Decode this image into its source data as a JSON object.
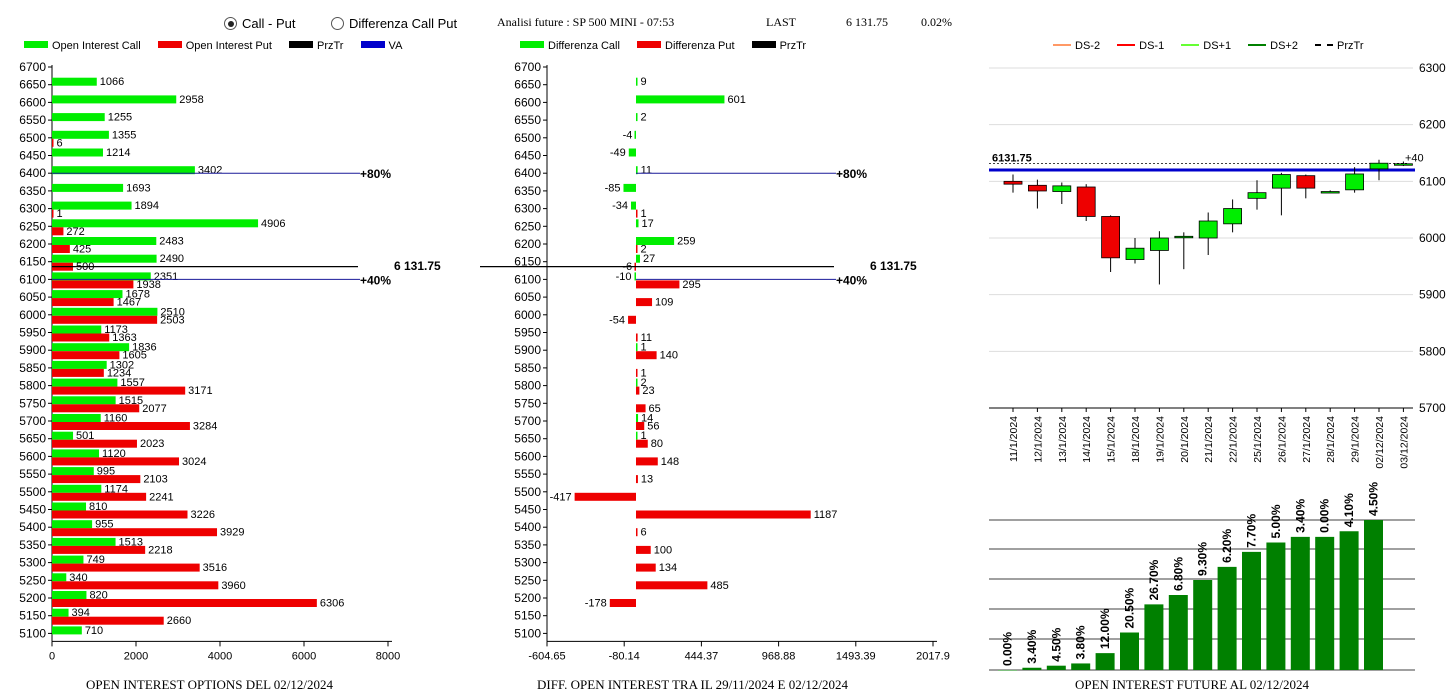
{
  "header": {
    "options": [
      {
        "label": "Call - Put",
        "selected": true
      },
      {
        "label": "Differenza Call Put",
        "selected": false
      }
    ],
    "title": "Analisi future : SP 500 MINI - 07:53",
    "last_label": "LAST",
    "last_value": "6 131.75",
    "last_change": "0.02%"
  },
  "colors": {
    "green": "#00ee00",
    "red": "#ee0000",
    "black": "#000000",
    "blue": "#0000cc",
    "dark_green": "#008000",
    "ds_minus2": "#ff9966",
    "ds_minus1": "#ff0000",
    "ds_plus1": "#66ff33",
    "ds_plus2": "#008000"
  },
  "left_chart": {
    "legend": [
      {
        "label": "Open Interest Call",
        "color": "#00ee00"
      },
      {
        "label": "Open Interest Put",
        "color": "#ee0000"
      },
      {
        "label": "PrzTr",
        "color": "#000000"
      },
      {
        "label": "VA",
        "color": "#0000cc"
      }
    ],
    "footer": "OPEN INTEREST OPTIONS DEL 02/12/2024"
  },
  "mid_chart": {
    "legend": [
      {
        "label": "Differenza Call",
        "color": "#00ee00"
      },
      {
        "label": "Differenza Put",
        "color": "#ee0000"
      },
      {
        "label": "PrzTr",
        "color": "#000000"
      }
    ],
    "footer": "DIFF. OPEN INTEREST TRA IL 29/11/2024 E 02/12/2024"
  },
  "right_chart": {
    "legend": [
      {
        "label": "DS-2",
        "color": "#ff9966",
        "dashed": false
      },
      {
        "label": "DS-1",
        "color": "#ff0000",
        "dashed": false
      },
      {
        "label": "DS+1",
        "color": "#66ff33",
        "dashed": false
      },
      {
        "label": "DS+2",
        "color": "#008000",
        "dashed": false
      },
      {
        "label": "PrzTr",
        "color": "#000000",
        "dashed": true
      }
    ],
    "footer": "OPEN INTEREST FUTURE AL 02/12/2024"
  },
  "chart_data": [
    {
      "type": "bar",
      "orientation": "horizontal",
      "categories": [
        6700,
        6650,
        6600,
        6550,
        6500,
        6450,
        6400,
        6350,
        6300,
        6250,
        6200,
        6150,
        6100,
        6050,
        6000,
        5950,
        5900,
        5850,
        5800,
        5750,
        5700,
        5650,
        5600,
        5550,
        5500,
        5450,
        5400,
        5350,
        5300,
        5250,
        5200,
        5150,
        5100
      ],
      "series": [
        {
          "name": "Open Interest Call",
          "color": "#00ee00",
          "values": [
            null,
            1066,
            2958,
            1255,
            1355,
            1214,
            3402,
            1693,
            1894,
            4906,
            2483,
            2490,
            2351,
            1678,
            2510,
            1173,
            1836,
            1302,
            1557,
            1515,
            1160,
            501,
            1120,
            995,
            1174,
            810,
            955,
            1513,
            749,
            340,
            820,
            394,
            710
          ]
        },
        {
          "name": "Open Interest Put",
          "color": "#ee0000",
          "values": [
            null,
            null,
            null,
            null,
            6,
            null,
            null,
            null,
            1,
            272,
            425,
            500,
            1938,
            1467,
            2503,
            1363,
            1605,
            1234,
            3171,
            2077,
            3284,
            2023,
            3024,
            2103,
            2241,
            3226,
            3929,
            2218,
            3516,
            3960,
            6306,
            2660,
            null
          ]
        }
      ],
      "xlim": [
        0,
        8000
      ],
      "xticks": [
        "0",
        "2000",
        "4000",
        "6000",
        "8000"
      ],
      "lines": [
        {
          "strike": 6400,
          "label": "+80%",
          "color": "#0000cc"
        },
        {
          "strike": 6100,
          "label": "+40%",
          "color": "#0000cc"
        },
        {
          "strike": 6131.75,
          "label": "6 131.75",
          "color": "#000000"
        }
      ]
    },
    {
      "type": "bar",
      "orientation": "horizontal",
      "categories": [
        6700,
        6650,
        6600,
        6550,
        6500,
        6450,
        6400,
        6350,
        6300,
        6250,
        6200,
        6150,
        6100,
        6050,
        6000,
        5950,
        5900,
        5850,
        5800,
        5750,
        5700,
        5650,
        5600,
        5550,
        5500,
        5450,
        5400,
        5350,
        5300,
        5250,
        5200,
        5150,
        5100
      ],
      "series": [
        {
          "name": "Differenza Call",
          "color": "#00ee00",
          "values": [
            null,
            9,
            601,
            2,
            -4,
            -49,
            11,
            -85,
            -34,
            17,
            259,
            27,
            -10,
            null,
            null,
            null,
            1,
            null,
            2,
            null,
            14,
            1,
            null,
            null,
            null,
            null,
            null,
            null,
            null,
            null,
            null,
            null,
            null
          ]
        },
        {
          "name": "Differenza Put",
          "color": "#ee0000",
          "values": [
            null,
            null,
            null,
            null,
            null,
            null,
            null,
            null,
            1,
            null,
            2,
            -6,
            295,
            109,
            -54,
            11,
            140,
            1,
            23,
            65,
            56,
            80,
            148,
            13,
            -417,
            1187,
            6,
            100,
            134,
            485,
            -178,
            null,
            null
          ]
        }
      ],
      "call_neg_color": "#00ee00",
      "xlim": [
        -604.65,
        2017.9
      ],
      "xticks": [
        "-604.65",
        "-80.14",
        "444.37",
        "968.88",
        "1493.39",
        "2017.9"
      ],
      "lines": [
        {
          "strike": 6400,
          "label": "+80%",
          "color": "#0000cc"
        },
        {
          "strike": 6100,
          "label": "+40%",
          "color": "#0000cc"
        },
        {
          "strike": 6131.75,
          "label": "6 131.75",
          "color": "#000000"
        }
      ]
    },
    {
      "type": "candlestick",
      "dates": [
        "11/1/2024",
        "12/1/2024",
        "13/1/2024",
        "14/1/2024",
        "15/1/2024",
        "18/1/2024",
        "19/1/2024",
        "20/1/2024",
        "21/1/2024",
        "22/1/2024",
        "25/1/2024",
        "26/1/2024",
        "27/1/2024",
        "28/1/2024",
        "29/1/2024",
        "02/12/2024",
        "03/12/2024"
      ],
      "ohlc": [
        {
          "o": 6100,
          "h": 6112,
          "l": 6080,
          "c": 6095
        },
        {
          "o": 6093,
          "h": 6103,
          "l": 6052,
          "c": 6083
        },
        {
          "o": 6082,
          "h": 6098,
          "l": 6060,
          "c": 6092
        },
        {
          "o": 6090,
          "h": 6095,
          "l": 6030,
          "c": 6038
        },
        {
          "o": 6038,
          "h": 6040,
          "l": 5940,
          "c": 5965
        },
        {
          "o": 5962,
          "h": 6000,
          "l": 5955,
          "c": 5982
        },
        {
          "o": 5978,
          "h": 6012,
          "l": 5918,
          "c": 6000
        },
        {
          "o": 6002,
          "h": 6010,
          "l": 5945,
          "c": 6003
        },
        {
          "o": 6000,
          "h": 6045,
          "l": 5970,
          "c": 6030
        },
        {
          "o": 6025,
          "h": 6068,
          "l": 6010,
          "c": 6052
        },
        {
          "o": 6070,
          "h": 6102,
          "l": 6050,
          "c": 6080
        },
        {
          "o": 6088,
          "h": 6115,
          "l": 6040,
          "c": 6112
        },
        {
          "o": 6110,
          "h": 6112,
          "l": 6070,
          "c": 6088
        },
        {
          "o": 6082,
          "h": 6084,
          "l": 6080,
          "c": 6082
        },
        {
          "o": 6085,
          "h": 6125,
          "l": 6080,
          "c": 6113
        },
        {
          "o": 6122,
          "h": 6138,
          "l": 6102,
          "c": 6132
        },
        {
          "o": 6130,
          "h": 6135,
          "l": 6127,
          "c": 6131
        }
      ],
      "ylim": [
        5700,
        6300
      ],
      "yticks": [
        "5700",
        "5800",
        "5900",
        "6000",
        "6100",
        "6200",
        "6300"
      ],
      "price_line": {
        "value": 6131.75,
        "label": "6131.75"
      },
      "blue_level": 6120,
      "tag_label": "+40"
    },
    {
      "type": "bar",
      "categories": [
        "11/1/2024",
        "12/1/2024",
        "13/1/2024",
        "14/1/2024",
        "15/1/2024",
        "18/1/2024",
        "19/1/2024",
        "20/1/2024",
        "21/1/2024",
        "22/1/2024",
        "25/1/2024",
        "26/1/2024",
        "27/1/2024",
        "28/1/2024",
        "29/1/2024",
        "02/12/2024"
      ],
      "values": [
        0.0,
        3.4,
        4.5,
        3.8,
        12.0,
        20.5,
        26.7,
        6.8,
        9.3,
        6.2,
        7.7,
        5.0,
        3.4,
        0.0,
        4.1,
        4.5
      ],
      "labels": [
        "0.00%",
        "3.40%",
        "4.50%",
        "3.80%",
        "12.00%",
        "20.50%",
        "26.70%",
        "6.80%",
        "9.30%",
        "6.20%",
        "7.70%",
        "5.00%",
        "3.40%",
        "0.00%",
        "4.10%",
        "4.50%"
      ],
      "heights_pct": [
        0,
        1.2,
        2.3,
        3.5,
        9,
        20,
        35,
        40,
        48,
        55,
        63,
        68,
        71,
        71,
        74,
        80
      ],
      "color": "#008000"
    }
  ]
}
